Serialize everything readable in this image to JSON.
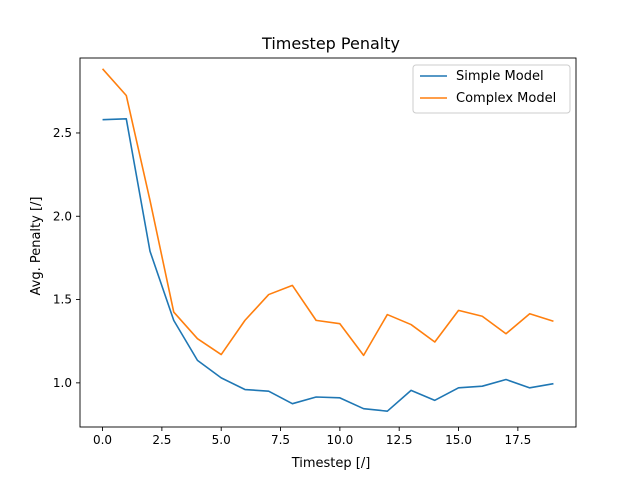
{
  "chart_data": {
    "type": "line",
    "title": "Timestep Penalty",
    "xlabel": "Timestep [/]",
    "ylabel": "Avg. Penalty [/]",
    "xlim": [
      -0.95,
      19.95
    ],
    "ylim": [
      0.735,
      2.95
    ],
    "xticks": [
      0.0,
      2.5,
      5.0,
      7.5,
      10.0,
      12.5,
      15.0,
      17.5
    ],
    "xtick_labels": [
      "0.0",
      "2.5",
      "5.0",
      "7.5",
      "10.0",
      "12.5",
      "15.0",
      "17.5"
    ],
    "yticks": [
      1.0,
      1.5,
      2.0,
      2.5
    ],
    "ytick_labels": [
      "1.0",
      "1.5",
      "2.0",
      "2.5"
    ],
    "grid": false,
    "legend_position": "top-right",
    "x": [
      0,
      1,
      2,
      3,
      4,
      5,
      6,
      7,
      8,
      9,
      10,
      11,
      12,
      13,
      14,
      15,
      16,
      17,
      18,
      19
    ],
    "series": [
      {
        "name": "Simple Model",
        "color": "#1f77b4",
        "values": [
          2.58,
          2.585,
          1.79,
          1.375,
          1.135,
          1.03,
          0.96,
          0.95,
          0.875,
          0.915,
          0.91,
          0.845,
          0.83,
          0.955,
          0.895,
          0.97,
          0.98,
          1.02,
          0.97,
          0.995
        ]
      },
      {
        "name": "Complex Model",
        "color": "#ff7f0e",
        "values": [
          2.885,
          2.725,
          2.095,
          1.425,
          1.265,
          1.17,
          1.375,
          1.53,
          1.585,
          1.375,
          1.355,
          1.165,
          1.41,
          1.35,
          1.245,
          1.435,
          1.4,
          1.295,
          1.415,
          1.37
        ]
      }
    ]
  }
}
